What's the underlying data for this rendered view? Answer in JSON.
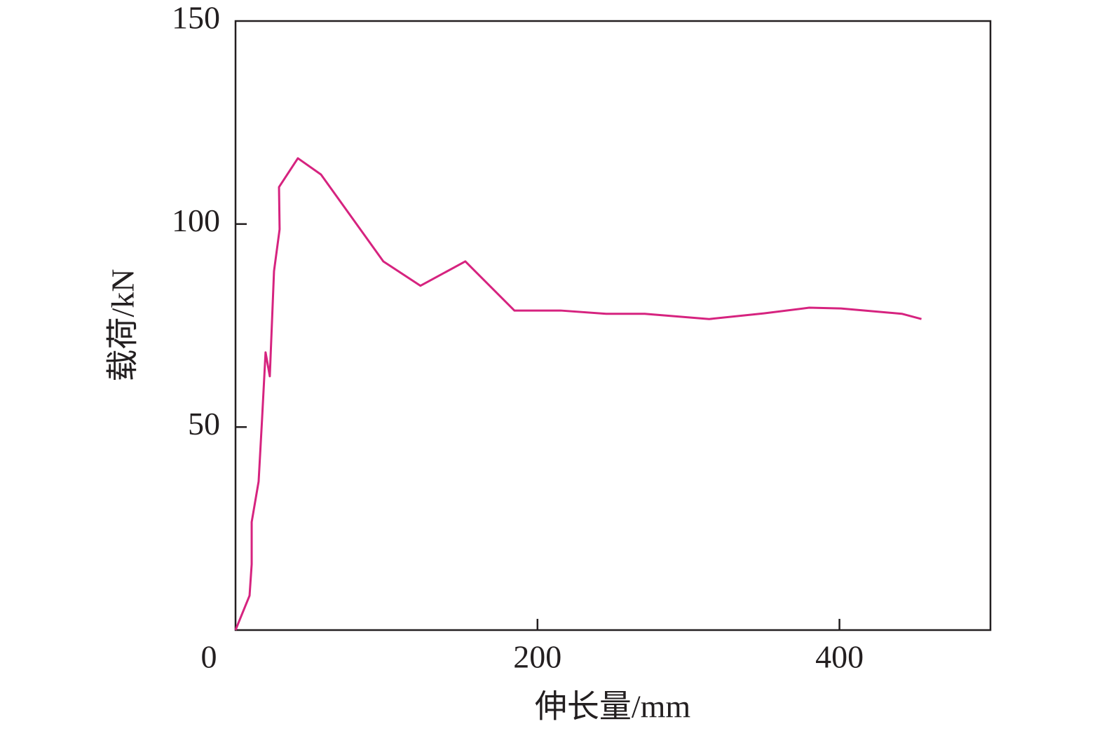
{
  "chart_data": {
    "type": "line",
    "x_label": "伸长量/mm",
    "y_label": "载荷/kN",
    "xlim": [
      0,
      500
    ],
    "ylim": [
      0,
      150
    ],
    "xticks": [
      0,
      200,
      400
    ],
    "yticks": [
      50,
      100,
      150
    ],
    "series": [
      {
        "color": "#d6237f",
        "x": [
          0,
          9.3,
          10.7,
          10.7,
          15.3,
          17.6,
          19.9,
          22.7,
          25.5,
          29.2,
          28.8,
          41.3,
          56.6,
          97.9,
          122.5,
          152.2,
          184.7,
          215.3,
          245.5,
          271,
          313.7,
          349.9,
          380,
          401,
          441.3,
          454.3
        ],
        "values": [
          0,
          8.5,
          16.2,
          26.6,
          36.6,
          52.1,
          68.4,
          62.5,
          88.4,
          98.7,
          109.1,
          116.2,
          112.2,
          90.8,
          84.8,
          90.8,
          78.7,
          78.7,
          77.9,
          77.9,
          76.6,
          78.0,
          79.4,
          79.2,
          77.9,
          76.6
        ]
      }
    ]
  }
}
